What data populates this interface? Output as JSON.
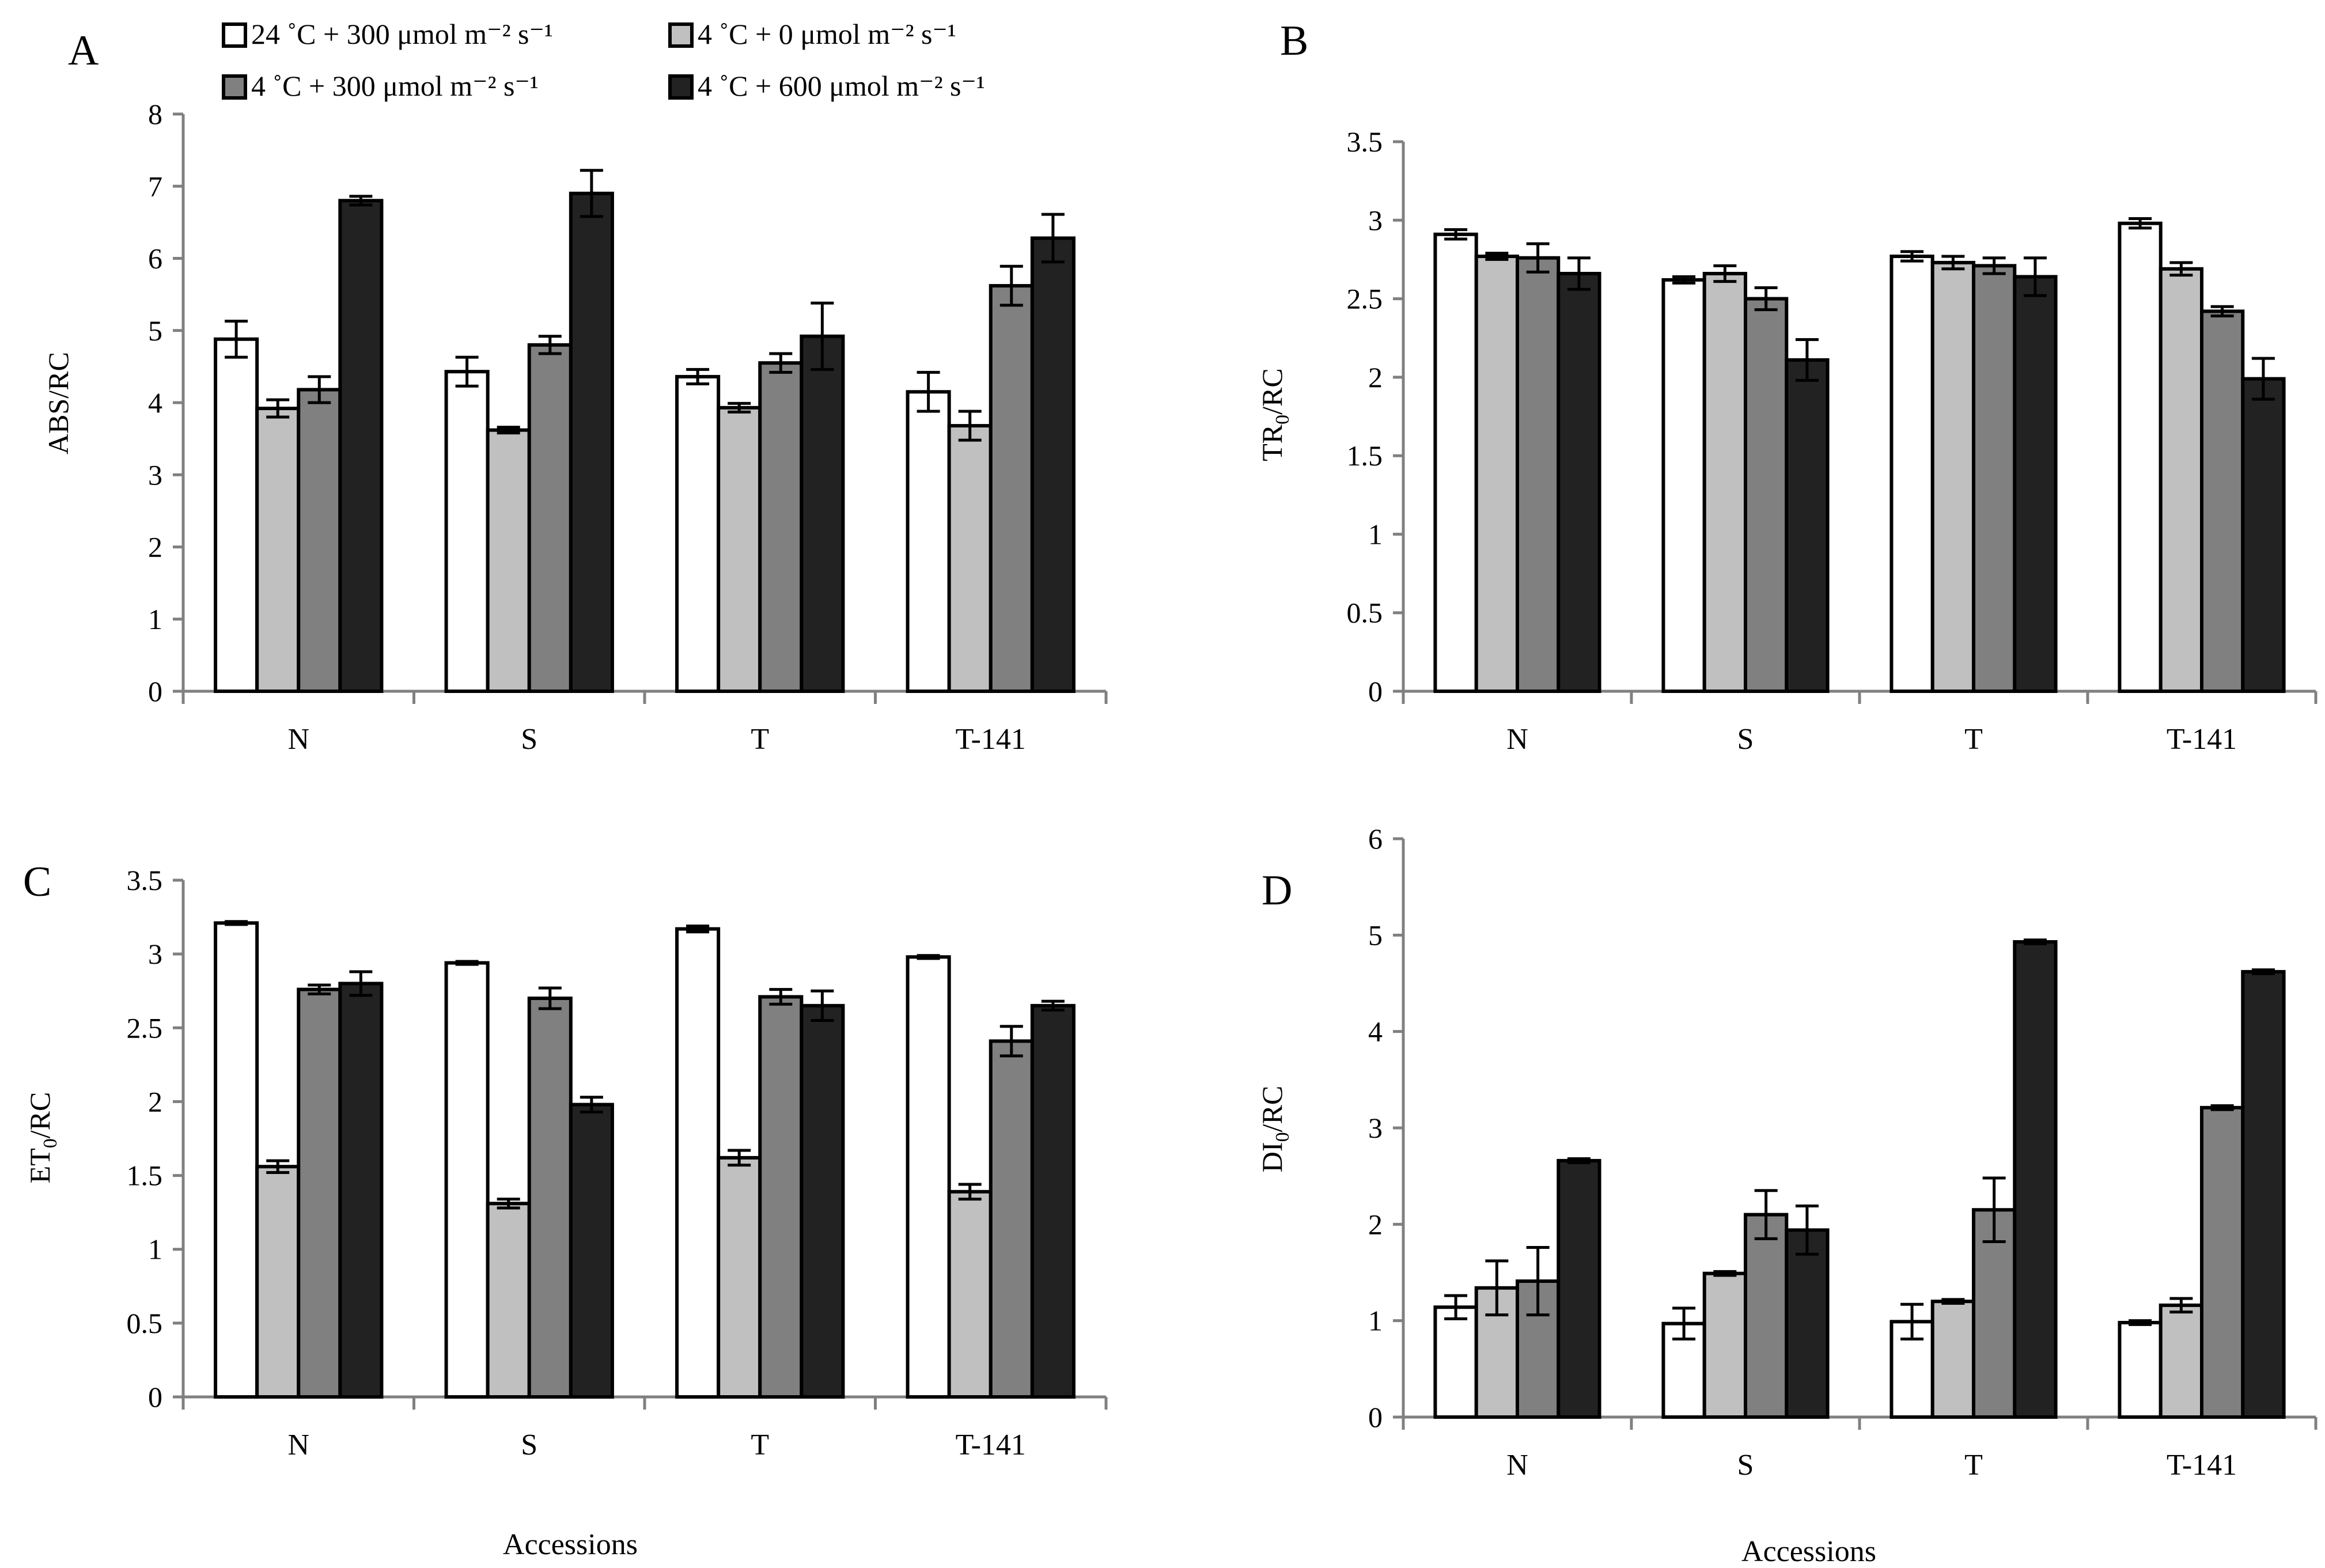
{
  "legend": {
    "items": [
      {
        "label": "24 ˚C + 300 μmol m⁻² s⁻¹",
        "color": "#ffffff"
      },
      {
        "label": "4 ˚C + 0 μmol m⁻² s⁻¹",
        "color": "#c0c0c0"
      },
      {
        "label": "4 ˚C + 300 μmol m⁻² s⁻¹",
        "color": "#808080"
      },
      {
        "label": "4 ˚C + 600 μmol m⁻² s⁻¹",
        "color": "#222222"
      }
    ]
  },
  "x_axis_title": "Accessions",
  "chart_data": [
    {
      "type": "bar",
      "panel": "A",
      "ylabel": "ABS/RC",
      "ylim": [
        0,
        8
      ],
      "yticks": [
        "0",
        "1",
        "2",
        "3",
        "4",
        "5",
        "6",
        "7",
        "8"
      ],
      "categories": [
        "N",
        "S",
        "T",
        "T-141"
      ],
      "series": [
        {
          "values": [
            4.88,
            4.43,
            4.36,
            4.15
          ],
          "errors": [
            0.25,
            0.2,
            0.1,
            0.27
          ]
        },
        {
          "values": [
            3.92,
            3.62,
            3.93,
            3.68
          ],
          "errors": [
            0.12,
            0.04,
            0.06,
            0.2
          ]
        },
        {
          "values": [
            4.18,
            4.8,
            4.55,
            5.62
          ],
          "errors": [
            0.18,
            0.12,
            0.13,
            0.27
          ]
        },
        {
          "values": [
            6.8,
            6.9,
            4.92,
            6.28
          ],
          "errors": [
            0.06,
            0.32,
            0.46,
            0.33
          ]
        }
      ]
    },
    {
      "type": "bar",
      "panel": "B",
      "ylabel": "TR0/RC",
      "ylim": [
        0,
        3.5
      ],
      "yticks": [
        "0",
        "0.5",
        "1",
        "1.5",
        "2",
        "2.5",
        "3",
        "3.5"
      ],
      "categories": [
        "N",
        "S",
        "T",
        "T-141"
      ],
      "series": [
        {
          "values": [
            2.91,
            2.62,
            2.77,
            2.98
          ],
          "errors": [
            0.03,
            0.02,
            0.03,
            0.03
          ]
        },
        {
          "values": [
            2.77,
            2.66,
            2.73,
            2.69
          ],
          "errors": [
            0.02,
            0.05,
            0.04,
            0.04
          ]
        },
        {
          "values": [
            2.76,
            2.5,
            2.71,
            2.42
          ],
          "errors": [
            0.09,
            0.07,
            0.05,
            0.03
          ]
        },
        {
          "values": [
            2.66,
            2.11,
            2.64,
            1.99
          ],
          "errors": [
            0.1,
            0.13,
            0.12,
            0.13
          ]
        }
      ]
    },
    {
      "type": "bar",
      "panel": "C",
      "ylabel": "ET0/RC",
      "ylim": [
        0,
        3.5
      ],
      "yticks": [
        "0",
        "0.5",
        "1",
        "1.5",
        "2",
        "2.5",
        "3",
        "3.5"
      ],
      "categories": [
        "N",
        "S",
        "T",
        "T-141"
      ],
      "series": [
        {
          "values": [
            3.21,
            2.94,
            3.17,
            2.98
          ],
          "errors": [
            0.01,
            0.01,
            0.02,
            0.01
          ]
        },
        {
          "values": [
            1.56,
            1.31,
            1.62,
            1.39
          ],
          "errors": [
            0.04,
            0.03,
            0.05,
            0.05
          ]
        },
        {
          "values": [
            2.76,
            2.7,
            2.71,
            2.41
          ],
          "errors": [
            0.03,
            0.07,
            0.05,
            0.1
          ]
        },
        {
          "values": [
            2.8,
            1.98,
            2.65,
            2.65
          ],
          "errors": [
            0.08,
            0.05,
            0.1,
            0.03
          ]
        }
      ]
    },
    {
      "type": "bar",
      "panel": "D",
      "ylabel": "DI0/RC",
      "ylim": [
        0,
        6
      ],
      "yticks": [
        "0",
        "1",
        "2",
        "3",
        "4",
        "5",
        "6"
      ],
      "categories": [
        "N",
        "S",
        "T",
        "T-141"
      ],
      "series": [
        {
          "values": [
            1.14,
            0.97,
            0.99,
            0.98
          ],
          "errors": [
            0.12,
            0.16,
            0.18,
            0.02
          ]
        },
        {
          "values": [
            1.34,
            1.49,
            1.2,
            1.16
          ],
          "errors": [
            0.28,
            0.02,
            0.02,
            0.07
          ]
        },
        {
          "values": [
            1.41,
            2.1,
            2.15,
            3.21
          ],
          "errors": [
            0.35,
            0.25,
            0.33,
            0.02
          ]
        },
        {
          "values": [
            2.66,
            1.94,
            4.93,
            4.62
          ],
          "errors": [
            0.02,
            0.25,
            0.02,
            0.02
          ]
        }
      ]
    }
  ]
}
